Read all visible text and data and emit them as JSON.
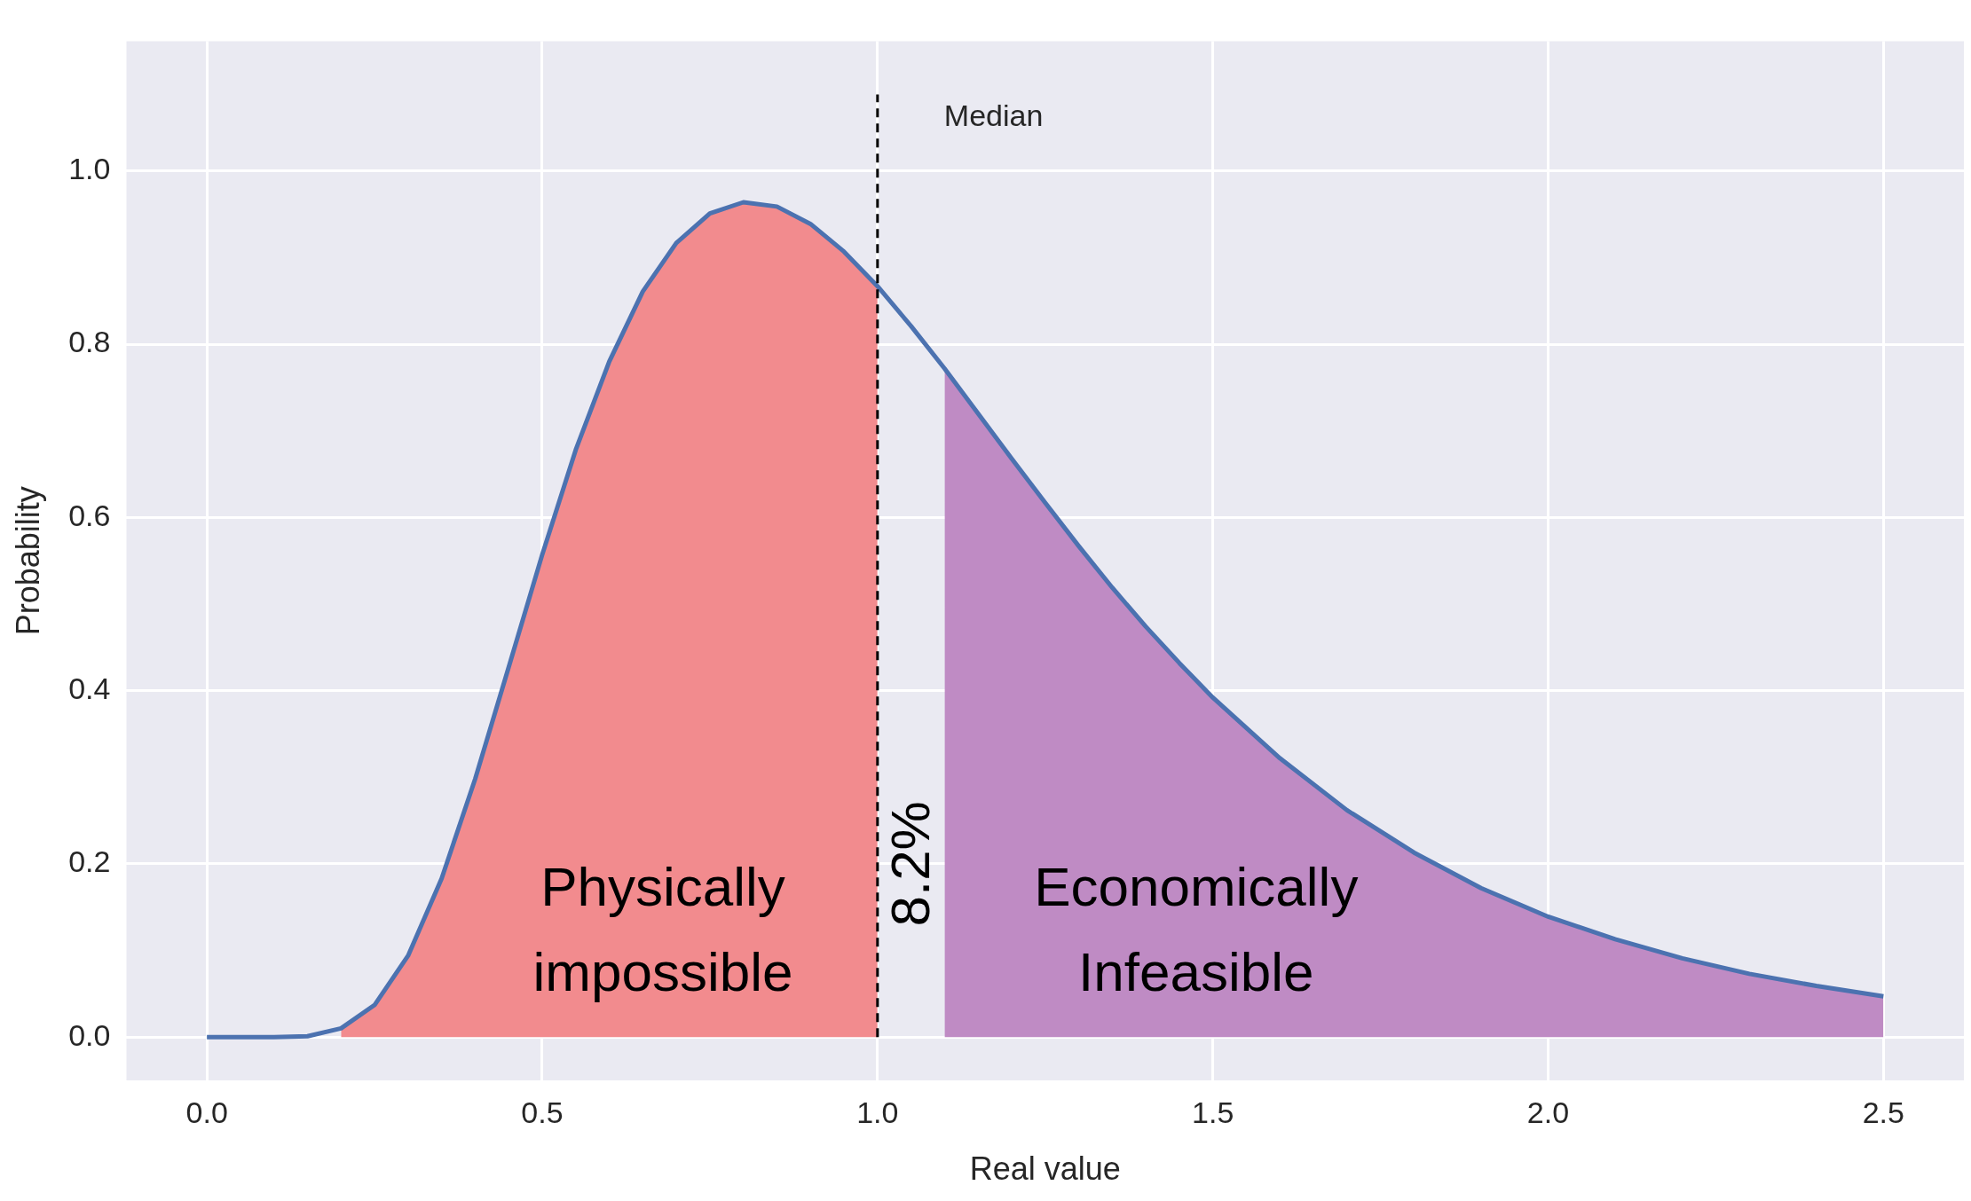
{
  "chart_data": {
    "type": "line",
    "xlabel": "Real value",
    "ylabel": "Probability",
    "xlim": [
      -0.12,
      2.62
    ],
    "ylim": [
      -0.05,
      1.15
    ],
    "xticks": [
      {
        "value": 0,
        "label": "0.0"
      },
      {
        "value": 0.5,
        "label": "0.5"
      },
      {
        "value": 1,
        "label": "1.0"
      },
      {
        "value": 1.5,
        "label": "1.5"
      },
      {
        "value": 2,
        "label": "2.0"
      },
      {
        "value": 2.5,
        "label": "2.5"
      }
    ],
    "yticks": [
      {
        "value": 0,
        "label": "0.0"
      },
      {
        "value": 0.2,
        "label": "0.2"
      },
      {
        "value": 0.4,
        "label": "0.4"
      },
      {
        "value": 0.6,
        "label": "0.6"
      },
      {
        "value": 0.8,
        "label": "0.8"
      },
      {
        "value": 1,
        "label": "1.0"
      }
    ],
    "grid": true,
    "legend": false,
    "marker": "none",
    "line_style": "solid",
    "series": [
      {
        "type": "area",
        "color": "#f28b8e",
        "x": [
          0.2,
          0.25,
          0.3,
          0.35,
          0.4,
          0.45,
          0.5,
          0.55,
          0.6,
          0.65,
          0.7,
          0.75,
          0.8,
          0.85,
          0.9,
          0.95,
          1.0
        ],
        "values": [
          0.01,
          0.037,
          0.094,
          0.183,
          0.298,
          0.427,
          0.557,
          0.678,
          0.78,
          0.861,
          0.917,
          0.951,
          0.964,
          0.959,
          0.939,
          0.907,
          0.867
        ]
      },
      {
        "type": "area",
        "color": "#bf8bc4",
        "x": [
          1.1,
          1.15,
          1.2,
          1.25,
          1.3,
          1.35,
          1.4,
          1.45,
          1.5,
          1.6,
          1.7,
          1.8,
          1.9,
          2.0,
          2.1,
          2.2,
          2.3,
          2.4,
          2.5
        ],
        "values": [
          0.772,
          0.72,
          0.668,
          0.617,
          0.567,
          0.519,
          0.474,
          0.432,
          0.392,
          0.322,
          0.262,
          0.213,
          0.172,
          0.139,
          0.113,
          0.091,
          0.073,
          0.059,
          0.047
        ]
      },
      {
        "color": "#4c72b0",
        "x": [
          0,
          0.1,
          0.15,
          0.2,
          0.25,
          0.3,
          0.35,
          0.4,
          0.45,
          0.5,
          0.55,
          0.6,
          0.65,
          0.7,
          0.75,
          0.8,
          0.85,
          0.9,
          0.95,
          1.0,
          1.05,
          1.1,
          1.15,
          1.2,
          1.25,
          1.3,
          1.35,
          1.4,
          1.45,
          1.5,
          1.6,
          1.7,
          1.8,
          1.9,
          2.0,
          2.1,
          2.2,
          2.3,
          2.4,
          2.5
        ],
        "values": [
          0,
          0,
          0.001,
          0.01,
          0.037,
          0.094,
          0.183,
          0.298,
          0.427,
          0.557,
          0.678,
          0.78,
          0.861,
          0.917,
          0.951,
          0.964,
          0.959,
          0.939,
          0.907,
          0.867,
          0.821,
          0.772,
          0.72,
          0.668,
          0.617,
          0.567,
          0.519,
          0.474,
          0.432,
          0.392,
          0.322,
          0.262,
          0.213,
          0.172,
          0.139,
          0.113,
          0.091,
          0.073,
          0.059,
          0.047
        ]
      }
    ],
    "ref_lines": [
      {
        "axis": "x",
        "value": 1.0,
        "label": "Median",
        "color": "#000000",
        "line_style": "dashed"
      }
    ],
    "annotations": [
      "Physically impossible",
      "8.2%",
      "Economically Infeasible"
    ]
  }
}
